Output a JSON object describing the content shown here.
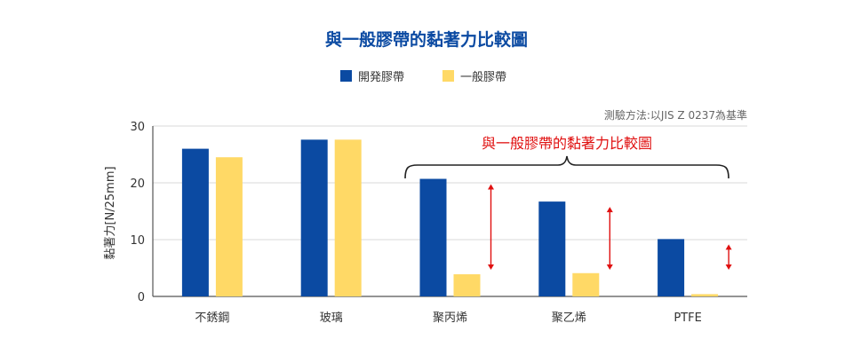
{
  "chart_data": {
    "type": "bar",
    "title": "與一般膠帶的黏著力比較圖",
    "note": "測驗方法:以JIS Z 0237為基準",
    "annotation": "與一般膠帶的黏著力比較圖",
    "ylabel": "黏著力[N/25mm]",
    "xlabel": "",
    "ylim": [
      0,
      30
    ],
    "yticks": [
      0,
      10,
      20,
      30
    ],
    "grid": true,
    "legend_position": "top-center",
    "categories": [
      "不銹鋼",
      "玻璃",
      "聚丙烯",
      "聚乙烯",
      "PTFE"
    ],
    "series": [
      {
        "name": "開発膠帶",
        "color": "#0b4aa2",
        "values": [
          26.0,
          27.6,
          20.7,
          16.7,
          10.1
        ]
      },
      {
        "name": "一般膠帶",
        "color": "#ffd966",
        "values": [
          24.5,
          27.6,
          3.9,
          4.1,
          0.4
        ]
      }
    ]
  }
}
